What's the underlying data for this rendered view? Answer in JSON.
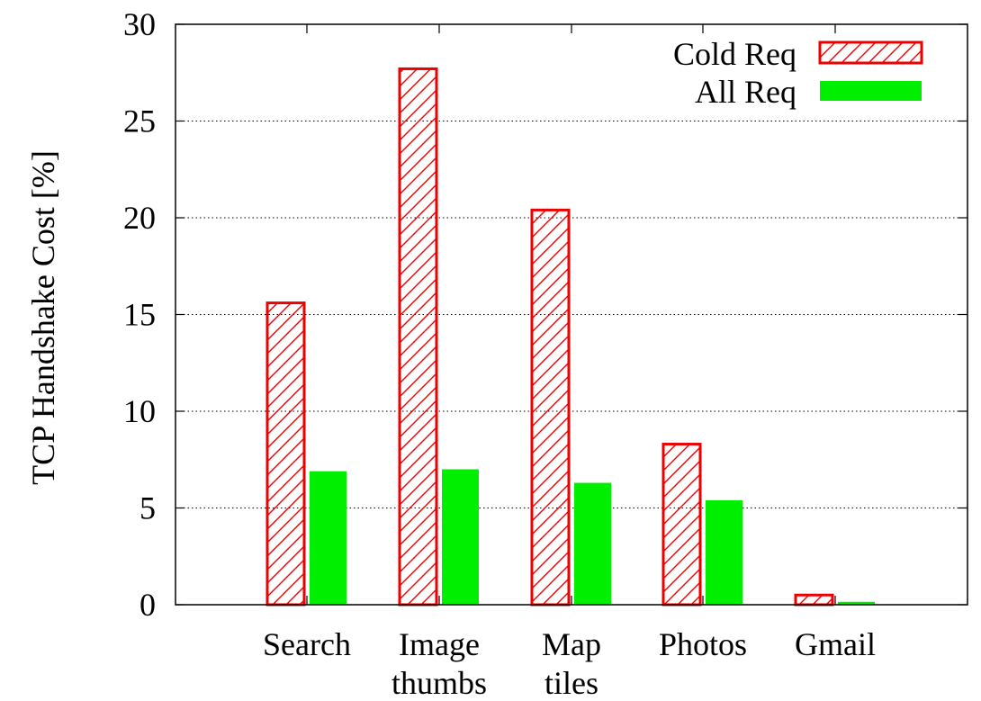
{
  "chart_data": {
    "type": "bar",
    "title": "",
    "xlabel": "",
    "ylabel": "TCP Handshake Cost [%]",
    "ylim": [
      0,
      30
    ],
    "yticks": [
      0,
      5,
      10,
      15,
      20,
      25,
      30
    ],
    "grid": true,
    "legend_position": "top-right",
    "categories": [
      [
        "Search"
      ],
      [
        "Image",
        "thumbs"
      ],
      [
        "Map",
        "tiles"
      ],
      [
        "Photos"
      ],
      [
        "Gmail"
      ]
    ],
    "series": [
      {
        "name": "Cold Req",
        "values": [
          15.6,
          27.7,
          20.4,
          8.3,
          0.5
        ],
        "color": "#ee0000",
        "style": "hatched"
      },
      {
        "name": "All Req",
        "values": [
          6.9,
          7.0,
          6.3,
          5.4,
          0.15
        ],
        "color": "#00ee00",
        "style": "solid"
      }
    ]
  }
}
